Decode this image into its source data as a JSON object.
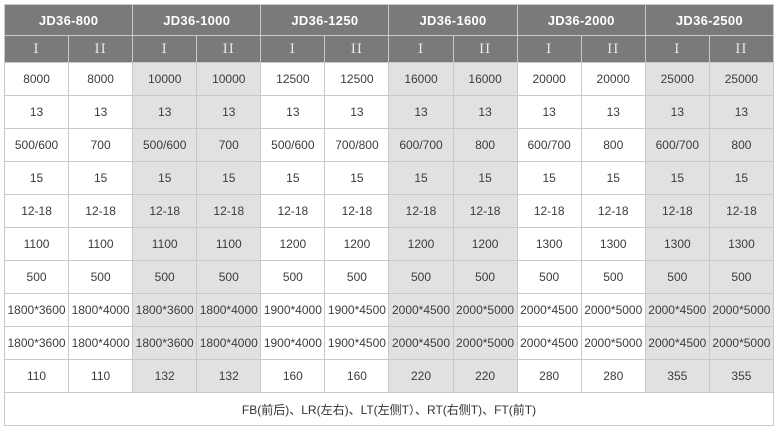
{
  "table": {
    "groups": [
      "JD36-800",
      "JD36-1000",
      "JD36-1250",
      "JD36-1600",
      "JD36-2000",
      "JD36-2500"
    ],
    "subheaders": [
      "I",
      "II"
    ],
    "rows": [
      [
        "8000",
        "8000",
        "10000",
        "10000",
        "12500",
        "12500",
        "16000",
        "16000",
        "20000",
        "20000",
        "25000",
        "25000"
      ],
      [
        "13",
        "13",
        "13",
        "13",
        "13",
        "13",
        "13",
        "13",
        "13",
        "13",
        "13",
        "13"
      ],
      [
        "500/600",
        "700",
        "500/600",
        "700",
        "500/600",
        "700/800",
        "600/700",
        "800",
        "600/700",
        "800",
        "600/700",
        "800"
      ],
      [
        "15",
        "15",
        "15",
        "15",
        "15",
        "15",
        "15",
        "15",
        "15",
        "15",
        "15",
        "15"
      ],
      [
        "12-18",
        "12-18",
        "12-18",
        "12-18",
        "12-18",
        "12-18",
        "12-18",
        "12-18",
        "12-18",
        "12-18",
        "12-18",
        "12-18"
      ],
      [
        "1100",
        "1100",
        "1100",
        "1100",
        "1200",
        "1200",
        "1200",
        "1200",
        "1300",
        "1300",
        "1300",
        "1300"
      ],
      [
        "500",
        "500",
        "500",
        "500",
        "500",
        "500",
        "500",
        "500",
        "500",
        "500",
        "500",
        "500"
      ],
      [
        "1800*3600",
        "1800*4000",
        "1800*3600",
        "1800*4000",
        "1900*4000",
        "1900*4500",
        "2000*4500",
        "2000*5000",
        "2000*4500",
        "2000*5000",
        "2000*4500",
        "2000*5000"
      ],
      [
        "1800*3600",
        "1800*4000",
        "1800*3600",
        "1800*4000",
        "1900*4000",
        "1900*4500",
        "2000*4500",
        "2000*5000",
        "2000*4500",
        "2000*5000",
        "2000*4500",
        "2000*5000"
      ],
      [
        "110",
        "110",
        "132",
        "132",
        "160",
        "160",
        "220",
        "220",
        "280",
        "280",
        "355",
        "355"
      ]
    ],
    "footer_note": "FB(前后)、LR(左右)、LT(左侧T）、RT(右侧T)、FT(前T)",
    "colors": {
      "header_bg": "#7a7a7a",
      "header_text": "#ffffff",
      "alt_column_bg": "#e1e1e1",
      "border": "#c9c9c9",
      "cell_text": "#3c3c3c"
    }
  }
}
